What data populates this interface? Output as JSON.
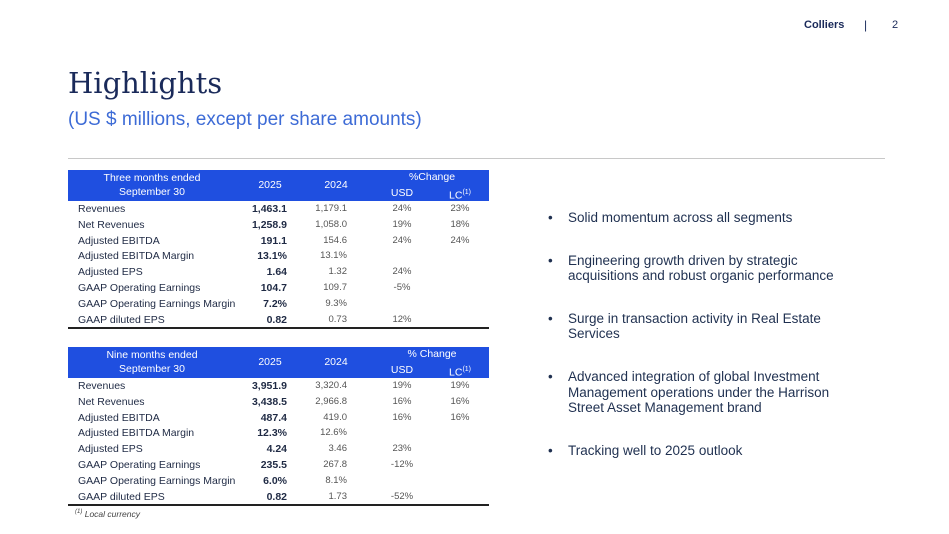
{
  "header": {
    "brand": "Colliers",
    "separator": "|",
    "page": "2"
  },
  "title": "Highlights",
  "subtitle": "(US $ millions, except per share amounts)",
  "tables": [
    {
      "period_line1": "Three months ended",
      "period_line2": "September 30",
      "col_2025": "2025",
      "col_2024": "2024",
      "change": "%Change",
      "usd": "USD",
      "lc": "LC",
      "lc_note": "(1)",
      "rows": [
        [
          "Revenues",
          "1,463.1",
          "1,179.1",
          "24%",
          "23%"
        ],
        [
          "Net Revenues",
          "1,258.9",
          "1,058.0",
          "19%",
          "18%"
        ],
        [
          "Adjusted EBITDA",
          "191.1",
          "154.6",
          "24%",
          "24%"
        ],
        [
          "Adjusted EBITDA Margin",
          "13.1%",
          "13.1%",
          null,
          null
        ],
        [
          "Adjusted EPS",
          "1.64",
          "1.32",
          "24%",
          null
        ],
        [
          "GAAP Operating Earnings",
          "104.7",
          "109.7",
          "-5%",
          null
        ],
        [
          "GAAP Operating Earnings Margin",
          "7.2%",
          "9.3%",
          null,
          null
        ],
        [
          "GAAP diluted EPS",
          "0.82",
          "0.73",
          "12%",
          null
        ]
      ]
    },
    {
      "period_line1": "Nine months ended",
      "period_line2": "September 30",
      "col_2025": "2025",
      "col_2024": "2024",
      "change": "% Change",
      "usd": "USD",
      "lc": "LC",
      "lc_note": "(1)",
      "rows": [
        [
          "Revenues",
          "3,951.9",
          "3,320.4",
          "19%",
          "19%"
        ],
        [
          "Net Revenues",
          "3,438.5",
          "2,966.8",
          "16%",
          "16%"
        ],
        [
          "Adjusted EBITDA",
          "487.4",
          "419.0",
          "16%",
          "16%"
        ],
        [
          "Adjusted EBITDA Margin",
          "12.3%",
          "12.6%",
          null,
          null
        ],
        [
          "Adjusted EPS",
          "4.24",
          "3.46",
          "23%",
          null
        ],
        [
          "GAAP Operating Earnings",
          "235.5",
          "267.8",
          "-12%",
          null
        ],
        [
          "GAAP Operating Earnings Margin",
          "6.0%",
          "8.1%",
          null,
          null
        ],
        [
          "GAAP diluted EPS",
          "0.82",
          "1.73",
          "-52%",
          null
        ]
      ]
    }
  ],
  "footnote": {
    "mark": "(1)",
    "text": "Local currency"
  },
  "bullets": [
    "Solid momentum across all segments",
    "Engineering  growth driven by strategic acquisitions and robust organic performance",
    "Surge in transaction activity in Real Estate Services",
    "Advanced integration of global Investment Management operations under the Harrison Street Asset Management brand",
    "Tracking well to 2025 outlook"
  ]
}
